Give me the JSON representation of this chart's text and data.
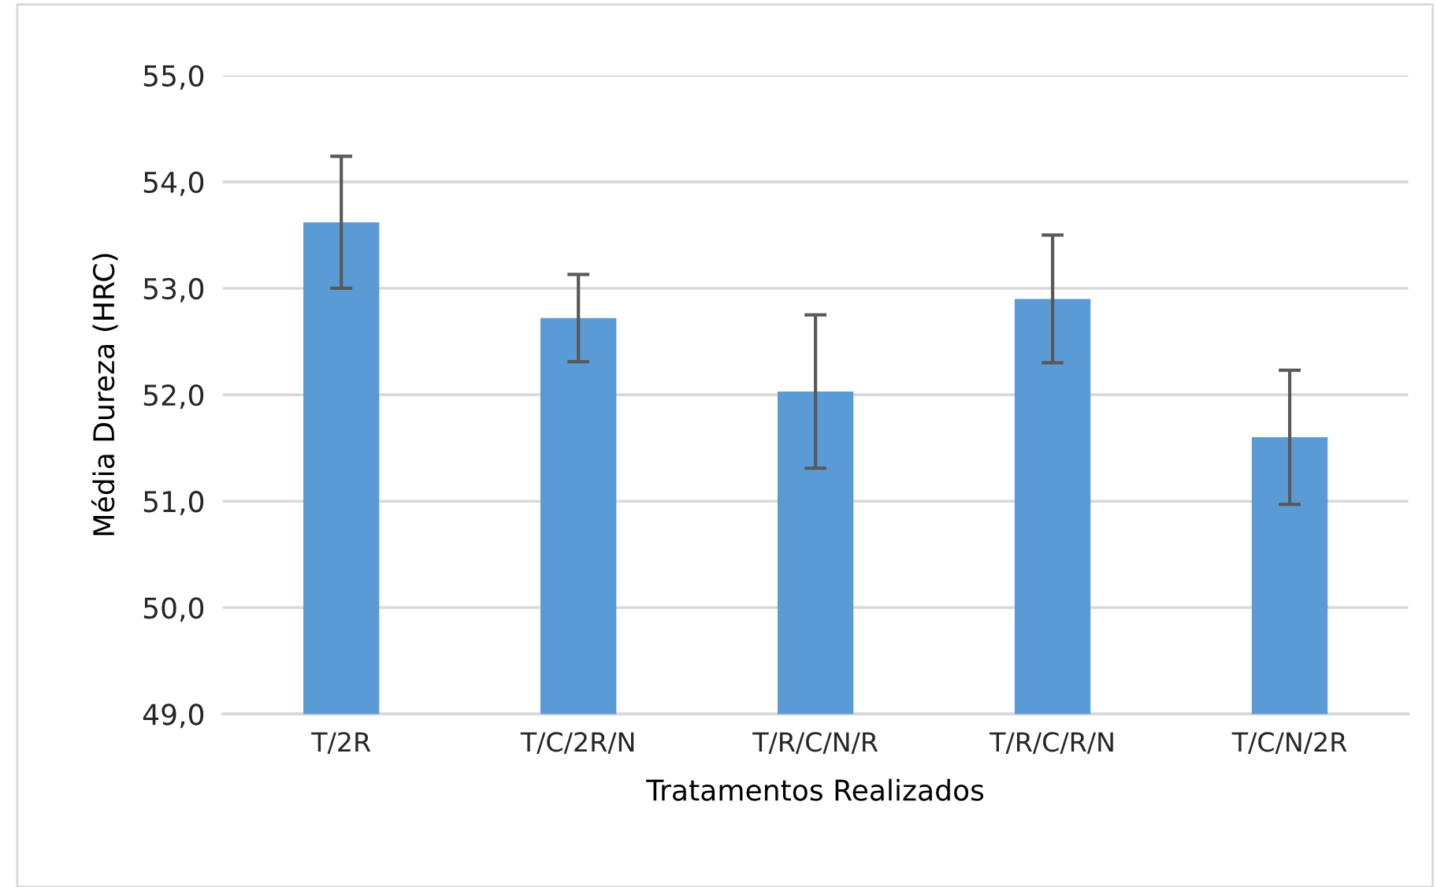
{
  "chart_data": {
    "type": "bar",
    "xlabel": "Tratamentos Realizados",
    "ylabel": "Média Dureza (HRC)",
    "categories": [
      "T/2R",
      "T/C/2R/N",
      "T/R/C/N/R",
      "T/R/C/R/N",
      "T/C/N/2R"
    ],
    "values": [
      53.62,
      52.72,
      52.03,
      52.9,
      51.6
    ],
    "errors": [
      0.62,
      0.41,
      0.72,
      0.6,
      0.63
    ],
    "color": "#5b9bd5",
    "ylim": [
      49,
      55
    ],
    "yticks": [
      {
        "value": 49,
        "label": "49,0"
      },
      {
        "value": 50,
        "label": "50,0"
      },
      {
        "value": 51,
        "label": "51,0"
      },
      {
        "value": 52,
        "label": "52,0"
      },
      {
        "value": 53,
        "label": "53,0"
      },
      {
        "value": 54,
        "label": "54,0"
      },
      {
        "value": 55,
        "label": "55,0"
      }
    ],
    "grid": "y"
  }
}
